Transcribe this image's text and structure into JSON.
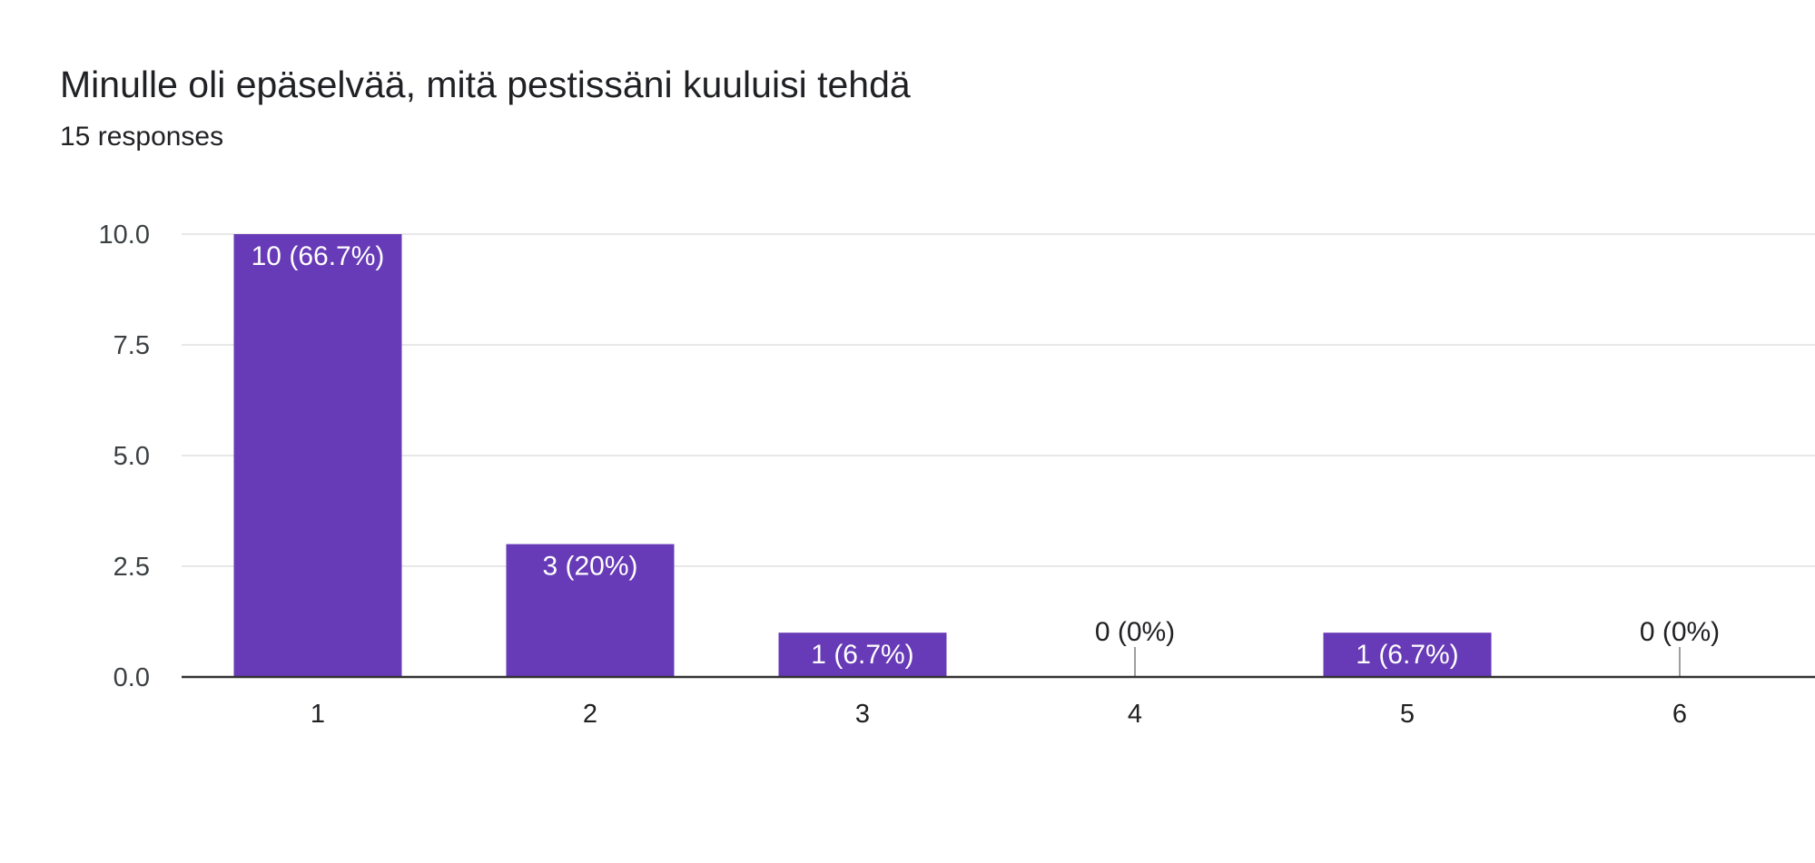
{
  "header": {
    "title": "Minulle oli epäselvää, mitä pestissäni kuuluisi tehdä",
    "responses": "15 responses"
  },
  "chart_data": {
    "type": "bar",
    "title": "Minulle oli epäselvää, mitä pestissäni kuuluisi tehdä",
    "subtitle": "15 responses",
    "categories": [
      "1",
      "2",
      "3",
      "4",
      "5",
      "6"
    ],
    "values": [
      10,
      3,
      1,
      0,
      1,
      0
    ],
    "data_labels": [
      "10 (66.7%)",
      "3 (20%)",
      "1 (6.7%)",
      "0 (0%)",
      "1 (6.7%)",
      "0 (0%)"
    ],
    "ylim": [
      0,
      10
    ],
    "yticks": [
      0,
      2.5,
      5,
      7.5,
      10
    ],
    "ytick_labels": [
      "0.0",
      "2.5",
      "5.0",
      "7.5",
      "10.0"
    ],
    "xlabel": "",
    "ylabel": "",
    "grid": true,
    "legend": "none",
    "colors": {
      "bar": "#673ab7",
      "grid": "#e8e8e8",
      "axis": "#333333",
      "zero_marker": "#9e9e9e"
    }
  }
}
